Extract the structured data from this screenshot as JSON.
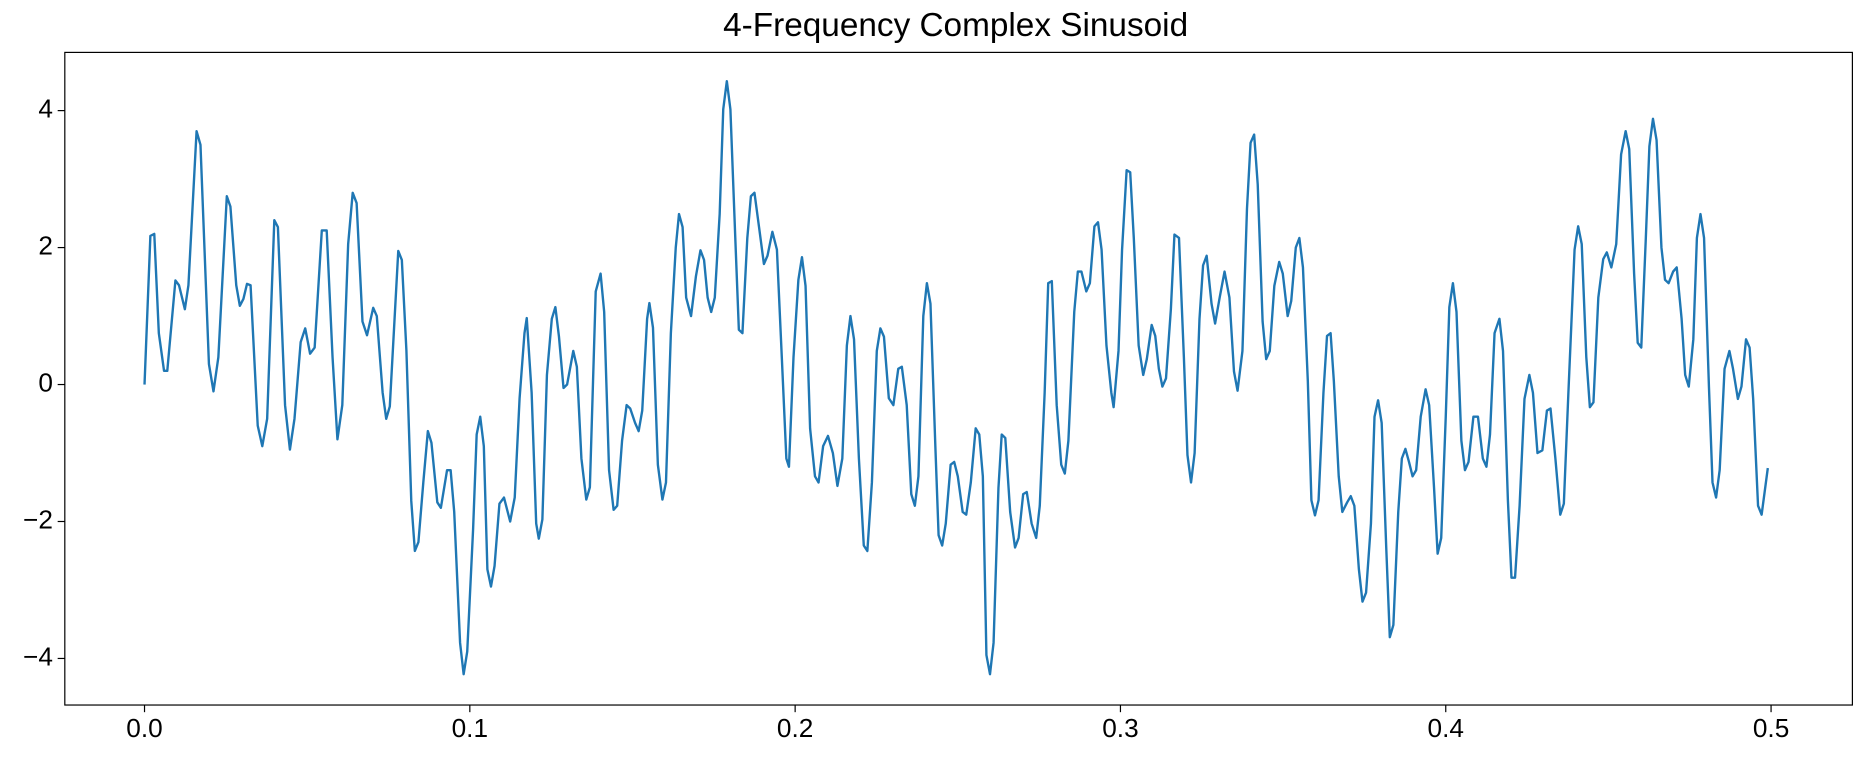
{
  "chart_data": {
    "type": "line",
    "title": "4-Frequency Complex Sinusoid",
    "color": "#1f77b4",
    "xlim": [
      -0.0245,
      0.525
    ],
    "ylim": [
      -4.68,
      4.85
    ],
    "xticks": [
      {
        "value": 0,
        "label": "0.0"
      },
      0.1,
      0.2,
      0.3,
      0.4,
      0.5
    ],
    "yticks": [
      {
        "value": -4,
        "label": "−4"
      },
      {
        "value": -2,
        "label": "−2"
      },
      0,
      2,
      4
    ],
    "x": [
      0,
      0.0018,
      0.003,
      0.0044,
      0.006,
      0.007,
      0.0095,
      0.0106,
      0.0124,
      0.0135,
      0.016,
      0.0172,
      0.0198,
      0.0212,
      0.0227,
      0.0253,
      0.0264,
      0.0282,
      0.0293,
      0.0304,
      0.0315,
      0.0326,
      0.0348,
      0.0362,
      0.0377,
      0.0399,
      0.041,
      0.0432,
      0.0447,
      0.0461,
      0.048,
      0.0494,
      0.0509,
      0.0523,
      0.0545,
      0.056,
      0.0578,
      0.0593,
      0.0608,
      0.0626,
      0.064,
      0.0652,
      0.067,
      0.0684,
      0.0703,
      0.0714,
      0.0732,
      0.0743,
      0.0754,
      0.078,
      0.0791,
      0.0805,
      0.082,
      0.0831,
      0.0842,
      0.0857,
      0.0871,
      0.0882,
      0.09,
      0.0911,
      0.093,
      0.0941,
      0.0952,
      0.097,
      0.0981,
      0.0992,
      0.101,
      0.1021,
      0.1032,
      0.1043,
      0.1054,
      0.1065,
      0.1076,
      0.1091,
      0.1105,
      0.1124,
      0.1138,
      0.1153,
      0.1168,
      0.1175,
      0.119,
      0.1204,
      0.1212,
      0.1223,
      0.1237,
      0.1252,
      0.1263,
      0.1274,
      0.1288,
      0.1299,
      0.1318,
      0.1329,
      0.1343,
      0.1358,
      0.1369,
      0.1387,
      0.1402,
      0.1413,
      0.1428,
      0.1442,
      0.1453,
      0.1468,
      0.1482,
      0.1493,
      0.1508,
      0.1519,
      0.153,
      0.1545,
      0.1552,
      0.1563,
      0.1578,
      0.1592,
      0.1603,
      0.1618,
      0.1633,
      0.1643,
      0.1654,
      0.1665,
      0.168,
      0.1695,
      0.1709,
      0.172,
      0.1731,
      0.1742,
      0.1753,
      0.1768,
      0.1779,
      0.179,
      0.1801,
      0.1816,
      0.1827,
      0.1838,
      0.1853,
      0.1864,
      0.1875,
      0.1889,
      0.1904,
      0.1915,
      0.193,
      0.1944,
      0.1959,
      0.1973,
      0.1981,
      0.1995,
      0.201,
      0.2021,
      0.2032,
      0.2046,
      0.2061,
      0.2072,
      0.2086,
      0.2101,
      0.2116,
      0.213,
      0.2145,
      0.2159,
      0.217,
      0.2181,
      0.2196,
      0.2211,
      0.2222,
      0.2236,
      0.2251,
      0.2262,
      0.2273,
      0.2288,
      0.2302,
      0.2317,
      0.2328,
      0.2343,
      0.2357,
      0.2368,
      0.2379,
      0.2394,
      0.2405,
      0.2416,
      0.2431,
      0.2441,
      0.2452,
      0.2463,
      0.2478,
      0.2489,
      0.25,
      0.2515,
      0.2526,
      0.254,
      0.2555,
      0.2566,
      0.2577,
      0.2588,
      0.2599,
      0.261,
      0.2625,
      0.2635,
      0.2646,
      0.2661,
      0.2676,
      0.2687,
      0.2701,
      0.2712,
      0.2727,
      0.2741,
      0.2752,
      0.2767,
      0.2778,
      0.2789,
      0.2804,
      0.2818,
      0.2829,
      0.284,
      0.2858,
      0.2869,
      0.288,
      0.2895,
      0.2906,
      0.292,
      0.2931,
      0.2942,
      0.2957,
      0.2972,
      0.2979,
      0.2994,
      0.3005,
      0.3019,
      0.303,
      0.3041,
      0.3056,
      0.307,
      0.3081,
      0.3096,
      0.3107,
      0.3118,
      0.3129,
      0.314,
      0.3155,
      0.3166,
      0.318,
      0.3195,
      0.3206,
      0.3217,
      0.3228,
      0.3243,
      0.3254,
      0.3265,
      0.328,
      0.3291,
      0.3305,
      0.332,
      0.3335,
      0.3349,
      0.336,
      0.3375,
      0.3389,
      0.34,
      0.3411,
      0.3422,
      0.3437,
      0.3448,
      0.3459,
      0.3473,
      0.3488,
      0.3499,
      0.3514,
      0.3525,
      0.3539,
      0.355,
      0.3561,
      0.3576,
      0.3587,
      0.3598,
      0.3609,
      0.3624,
      0.3635,
      0.3646,
      0.3656,
      0.3671,
      0.3682,
      0.3697,
      0.3708,
      0.3719,
      0.3733,
      0.3744,
      0.3755,
      0.377,
      0.3781,
      0.3792,
      0.3803,
      0.3817,
      0.3828,
      0.3839,
      0.3854,
      0.3865,
      0.3876,
      0.3887,
      0.3898,
      0.3909,
      0.3923,
      0.3938,
      0.3949,
      0.3964,
      0.3975,
      0.3986,
      0.4,
      0.4011,
      0.4022,
      0.4033,
      0.4048,
      0.4059,
      0.407,
      0.4085,
      0.4099,
      0.4114,
      0.4125,
      0.4136,
      0.415,
      0.4165,
      0.4176,
      0.4191,
      0.4202,
      0.4213,
      0.4227,
      0.4242,
      0.4257,
      0.4268,
      0.4282,
      0.4297,
      0.4311,
      0.4322,
      0.4337,
      0.4352,
      0.4363,
      0.4377,
      0.4396,
      0.4407,
      0.4418,
      0.4432,
      0.4443,
      0.4454,
      0.4469,
      0.4484,
      0.4495,
      0.4509,
      0.4524,
      0.4539,
      0.4553,
      0.4564,
      0.4579,
      0.459,
      0.4601,
      0.4615,
      0.4626,
      0.4637,
      0.4648,
      0.4663,
      0.4674,
      0.4685,
      0.4699,
      0.471,
      0.4725,
      0.4736,
      0.4747,
      0.4761,
      0.4772,
      0.4783,
      0.4794,
      0.4809,
      0.482,
      0.4831,
      0.4842,
      0.4857,
      0.4872,
      0.4883,
      0.4898,
      0.4909,
      0.4923,
      0.4934,
      0.4945,
      0.496,
      0.4971,
      0.499
    ],
    "values": [
      0,
      2.17,
      2.2,
      0.75,
      0.2,
      0.2,
      1.52,
      1.45,
      1.1,
      1.45,
      3.7,
      3.5,
      0.3,
      -0.1,
      0.4,
      2.75,
      2.6,
      1.45,
      1.15,
      1.25,
      1.47,
      1.45,
      -0.6,
      -0.9,
      -0.5,
      2.4,
      2.3,
      -0.3,
      -0.95,
      -0.5,
      0.62,
      0.82,
      0.45,
      0.54,
      2.25,
      2.25,
      0.4,
      -0.8,
      -0.3,
      2.05,
      2.8,
      2.65,
      0.92,
      0.72,
      1.12,
      1.0,
      -0.12,
      -0.5,
      -0.32,
      1.95,
      1.82,
      0.5,
      -1.7,
      -2.43,
      -2.3,
      -1.43,
      -0.68,
      -0.85,
      -1.72,
      -1.8,
      -1.25,
      -1.25,
      -1.86,
      -3.77,
      -4.23,
      -3.9,
      -2.12,
      -0.73,
      -0.47,
      -0.9,
      -2.7,
      -2.95,
      -2.65,
      -1.74,
      -1.65,
      -2.0,
      -1.65,
      -0.2,
      0.75,
      0.97,
      -0.12,
      -2.03,
      -2.25,
      -1.97,
      0.14,
      0.96,
      1.13,
      0.7,
      -0.05,
      0,
      0.49,
      0.26,
      -1.08,
      -1.68,
      -1.5,
      1.36,
      1.62,
      1.06,
      -1.25,
      -1.83,
      -1.77,
      -0.82,
      -0.3,
      -0.35,
      -0.56,
      -0.68,
      -0.38,
      0.96,
      1.19,
      0.83,
      -1.17,
      -1.68,
      -1.43,
      0.75,
      2.0,
      2.49,
      2.3,
      1.27,
      1.0,
      1.58,
      1.96,
      1.82,
      1.27,
      1.06,
      1.27,
      2.49,
      4.02,
      4.43,
      4.02,
      2.14,
      0.8,
      0.75,
      2.14,
      2.75,
      2.8,
      2.3,
      1.76,
      1.88,
      2.23,
      1.97,
      0.4,
      -1.08,
      -1.2,
      0.4,
      1.53,
      1.86,
      1.44,
      -0.64,
      -1.34,
      -1.43,
      -0.9,
      -0.75,
      -1.0,
      -1.48,
      -1.08,
      0.57,
      1.0,
      0.66,
      -1.08,
      -2.35,
      -2.43,
      -1.43,
      0.49,
      0.82,
      0.7,
      -0.2,
      -0.3,
      0.23,
      0.26,
      -0.3,
      -1.6,
      -1.77,
      -1.34,
      1.0,
      1.48,
      1.18,
      -0.9,
      -2.2,
      -2.35,
      -2.03,
      -1.17,
      -1.13,
      -1.34,
      -1.86,
      -1.9,
      -1.43,
      -0.64,
      -0.73,
      -1.34,
      -3.95,
      -4.23,
      -3.77,
      -1.51,
      -0.73,
      -0.78,
      -1.86,
      -2.38,
      -2.24,
      -1.6,
      -1.57,
      -2.03,
      -2.24,
      -1.77,
      -0.12,
      1.48,
      1.51,
      -0.3,
      -1.17,
      -1.3,
      -0.82,
      1.06,
      1.65,
      1.65,
      1.36,
      1.48,
      2.31,
      2.37,
      1.97,
      0.57,
      -0.12,
      -0.33,
      0.49,
      1.97,
      3.13,
      3.1,
      2.14,
      0.57,
      0.14,
      0.37,
      0.87,
      0.71,
      0.23,
      -0.03,
      0.09,
      1.1,
      2.19,
      2.14,
      0.4,
      -1.03,
      -1.43,
      -1.0,
      0.96,
      1.74,
      1.88,
      1.18,
      0.89,
      1.27,
      1.65,
      1.27,
      0.19,
      -0.09,
      0.49,
      2.57,
      3.53,
      3.65,
      2.92,
      0.92,
      0.37,
      0.49,
      1.44,
      1.79,
      1.62,
      1.0,
      1.22,
      2.0,
      2.14,
      1.71,
      0.05,
      -1.69,
      -1.91,
      -1.69,
      -0.12,
      0.71,
      0.75,
      0.05,
      -1.34,
      -1.86,
      -1.72,
      -1.63,
      -1.77,
      -2.7,
      -3.17,
      -3.04,
      -2.03,
      -0.47,
      -0.23,
      -0.56,
      -2.38,
      -3.69,
      -3.51,
      -1.86,
      -1.08,
      -0.94,
      -1.13,
      -1.34,
      -1.25,
      -0.47,
      -0.07,
      -0.3,
      -1.51,
      -2.47,
      -2.24,
      -0.47,
      1.13,
      1.48,
      1.06,
      -0.82,
      -1.25,
      -1.13,
      -0.47,
      -0.47,
      -1.08,
      -1.2,
      -0.73,
      0.75,
      0.96,
      0.49,
      -1.69,
      -2.82,
      -2.82,
      -1.77,
      -0.21,
      0.14,
      -0.12,
      -1.0,
      -0.96,
      -0.38,
      -0.35,
      -1.08,
      -1.9,
      -1.74,
      -0.12,
      1.97,
      2.31,
      2.05,
      0.4,
      -0.33,
      -0.26,
      1.27,
      1.83,
      1.93,
      1.71,
      2.05,
      3.36,
      3.7,
      3.44,
      1.62,
      0.61,
      0.54,
      2.14,
      3.48,
      3.88,
      3.57,
      2.0,
      1.53,
      1.48,
      1.65,
      1.71,
      0.96,
      0.14,
      -0.03,
      0.66,
      2.14,
      2.49,
      2.14,
      -0.03,
      -1.43,
      -1.65,
      -1.25,
      0.23,
      0.49,
      0.23,
      -0.21,
      -0.03,
      0.66,
      0.54,
      -0.21,
      -1.77,
      -1.9,
      -1.22
    ]
  }
}
